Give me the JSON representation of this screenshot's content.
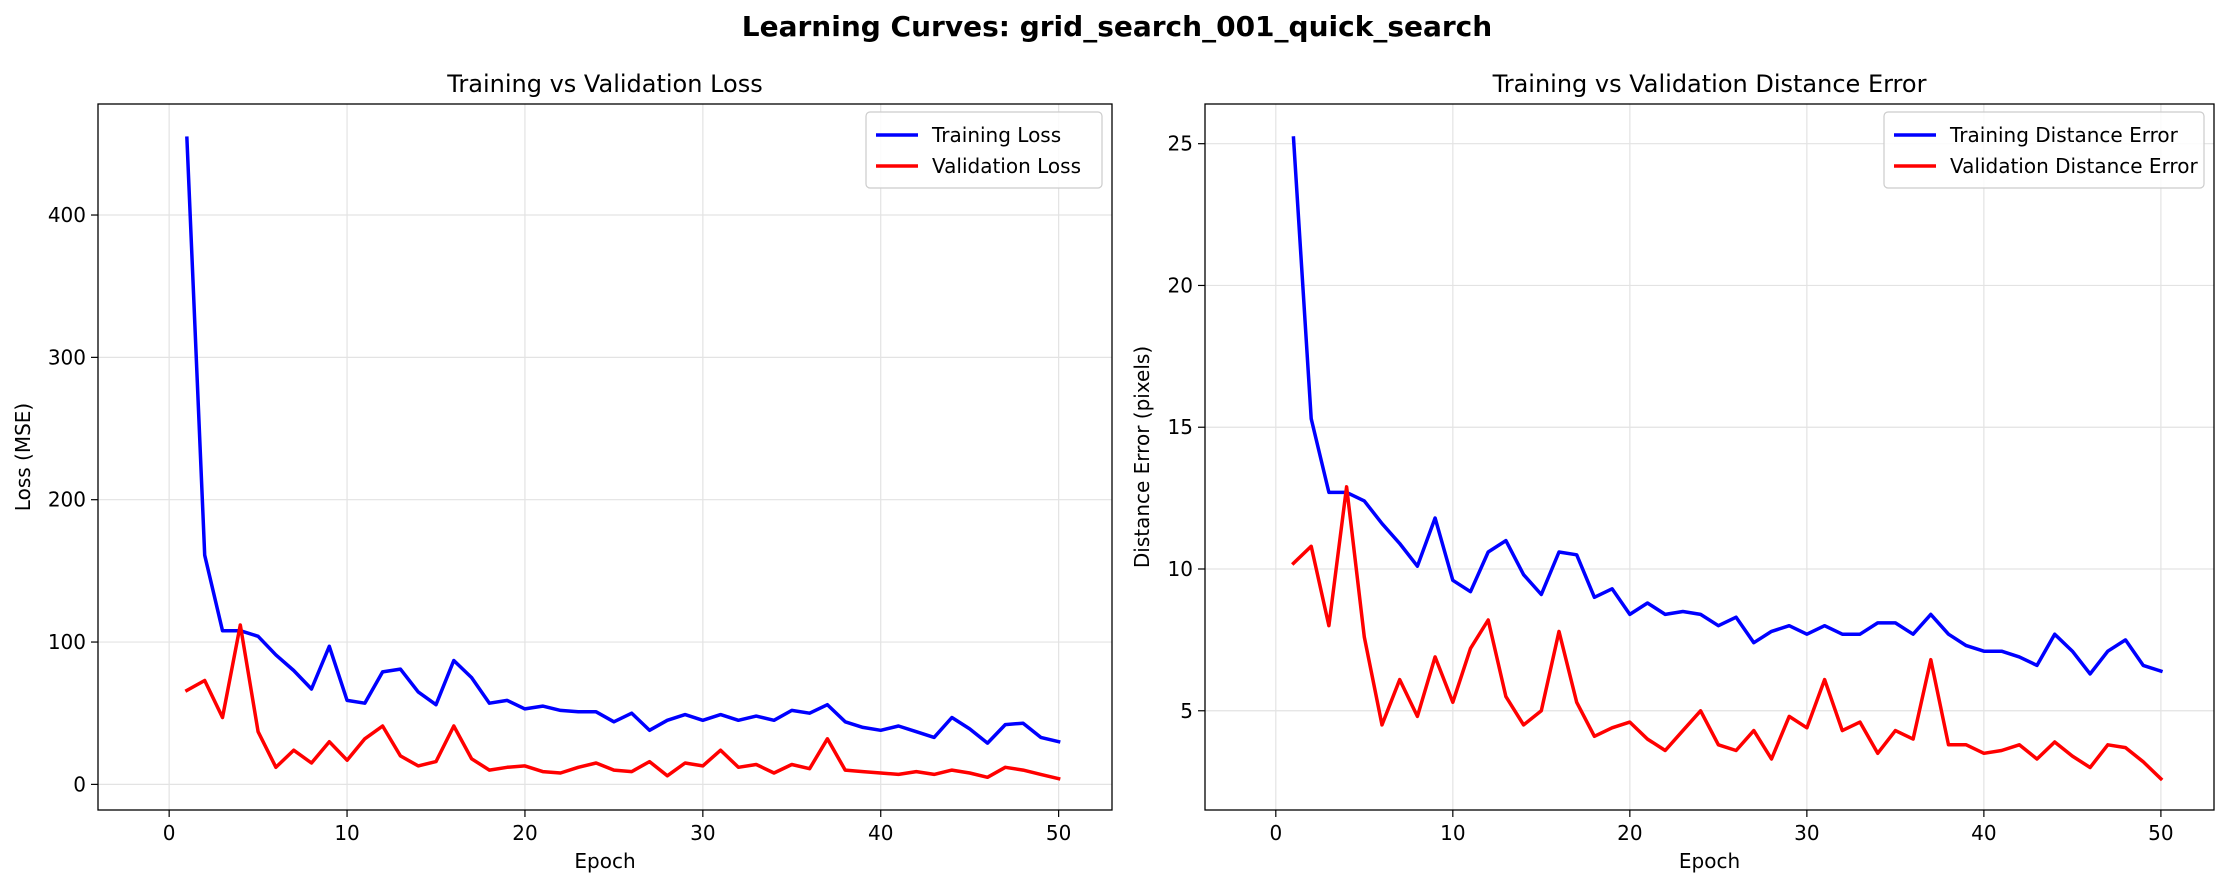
{
  "suptitle": "Learning Curves: grid_search_001_quick_search",
  "chart_data": [
    {
      "type": "line",
      "title": "Training vs Validation Loss",
      "xlabel": "Epoch",
      "ylabel": "Loss (MSE)",
      "xlim": [
        -4,
        53
      ],
      "ylim": [
        -18,
        478
      ],
      "xticks": [
        0,
        10,
        20,
        30,
        40,
        50
      ],
      "yticks": [
        0,
        100,
        200,
        300,
        400
      ],
      "grid": true,
      "legend_position": "top-right",
      "x": [
        1,
        2,
        3,
        4,
        5,
        6,
        7,
        8,
        9,
        10,
        11,
        12,
        13,
        14,
        15,
        16,
        17,
        18,
        19,
        20,
        21,
        22,
        23,
        24,
        25,
        26,
        27,
        28,
        29,
        30,
        31,
        32,
        33,
        34,
        35,
        36,
        37,
        38,
        39,
        40,
        41,
        42,
        43,
        44,
        45,
        46,
        47,
        48,
        49,
        50
      ],
      "series": [
        {
          "name": "Training Loss",
          "color": "#0000ff",
          "values": [
            454,
            161,
            108,
            108,
            104,
            91,
            80,
            67,
            97,
            59,
            57,
            79,
            81,
            65,
            56,
            87,
            75,
            57,
            59,
            53,
            55,
            52,
            51,
            51,
            44,
            50,
            38,
            45,
            49,
            45,
            49,
            45,
            48,
            45,
            52,
            50,
            56,
            44,
            40,
            38,
            41,
            37,
            33,
            47,
            39,
            29,
            42,
            43,
            33,
            30
          ]
        },
        {
          "name": "Validation Loss",
          "color": "#ff0000",
          "values": [
            66,
            73,
            47,
            112,
            37,
            12,
            24,
            15,
            30,
            17,
            32,
            41,
            20,
            13,
            16,
            41,
            18,
            10,
            12,
            13,
            9,
            8,
            12,
            15,
            10,
            9,
            16,
            6,
            15,
            13,
            24,
            12,
            14,
            8,
            14,
            11,
            32,
            10,
            9,
            8,
            7,
            9,
            7,
            10,
            8,
            5,
            12,
            10,
            7,
            4
          ]
        }
      ]
    },
    {
      "type": "line",
      "title": "Training vs Validation Distance Error",
      "xlabel": "Epoch",
      "ylabel": "Distance Error (pixels)",
      "xlim": [
        -4,
        53
      ],
      "ylim": [
        1.5,
        26.4
      ],
      "xticks": [
        0,
        10,
        20,
        30,
        40,
        50
      ],
      "yticks": [
        5,
        10,
        15,
        20,
        25
      ],
      "grid": true,
      "legend_position": "top-right",
      "x": [
        1,
        2,
        3,
        4,
        5,
        6,
        7,
        8,
        9,
        10,
        11,
        12,
        13,
        14,
        15,
        16,
        17,
        18,
        19,
        20,
        21,
        22,
        23,
        24,
        25,
        26,
        27,
        28,
        29,
        30,
        31,
        32,
        33,
        34,
        35,
        36,
        37,
        38,
        39,
        40,
        41,
        42,
        43,
        44,
        45,
        46,
        47,
        48,
        49,
        50
      ],
      "series": [
        {
          "name": "Training Distance Error",
          "color": "#0000ff",
          "values": [
            25.2,
            15.3,
            12.7,
            12.7,
            12.4,
            11.6,
            10.9,
            10.1,
            11.8,
            9.6,
            9.2,
            10.6,
            11.0,
            9.8,
            9.1,
            10.6,
            10.5,
            9.0,
            9.3,
            8.4,
            8.8,
            8.4,
            8.5,
            8.4,
            8.0,
            8.3,
            7.4,
            7.8,
            8.0,
            7.7,
            8.0,
            7.7,
            7.7,
            8.1,
            8.1,
            7.7,
            8.4,
            7.7,
            7.3,
            7.1,
            7.1,
            6.9,
            6.6,
            7.7,
            7.1,
            6.3,
            7.1,
            7.5,
            6.6,
            6.4
          ]
        },
        {
          "name": "Validation Distance Error",
          "color": "#ff0000",
          "values": [
            10.2,
            10.8,
            8.0,
            12.9,
            7.6,
            4.5,
            6.1,
            4.8,
            6.9,
            5.3,
            7.2,
            8.2,
            5.5,
            4.5,
            5.0,
            7.8,
            5.3,
            4.1,
            4.4,
            4.6,
            4.0,
            3.6,
            4.3,
            5.0,
            3.8,
            3.6,
            4.3,
            3.3,
            4.8,
            4.4,
            6.1,
            4.3,
            4.6,
            3.5,
            4.3,
            4.0,
            6.8,
            3.8,
            3.8,
            3.5,
            3.6,
            3.8,
            3.3,
            3.9,
            3.4,
            3.0,
            3.8,
            3.7,
            3.2,
            2.6
          ]
        }
      ]
    }
  ]
}
